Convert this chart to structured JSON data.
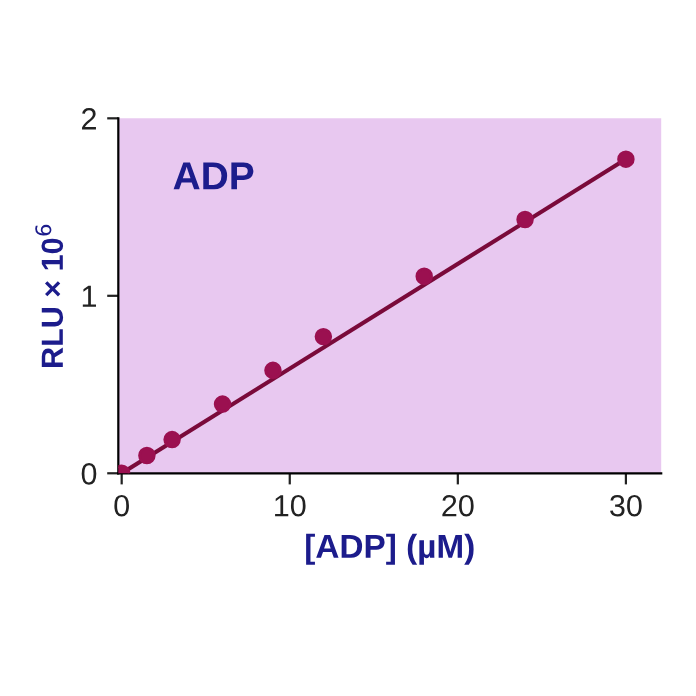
{
  "chart_data": {
    "type": "scatter",
    "xlabel": "[ADP] (µM)",
    "ylabel": "RLU × 10$^{6}$",
    "annotations": [
      "ADP"
    ],
    "x": [
      0,
      1.5,
      3,
      6,
      9,
      12,
      18,
      24,
      30
    ],
    "series": [
      {
        "color": "#9b1050",
        "marker": "circle",
        "values": [
          0,
          0.1,
          0.19,
          0.39,
          0.58,
          0.77,
          1.11,
          1.43,
          1.77
        ]
      },
      {
        "type": "line",
        "marker": "none",
        "color": "#7a0a3a",
        "x": [
          0,
          30
        ],
        "values": [
          0,
          1.77
        ]
      }
    ],
    "xlim": [
      -0.2,
      32.1
    ],
    "ylim": [
      0,
      2
    ],
    "xticks": [
      0,
      10,
      20,
      30
    ],
    "yticks": [
      0,
      1,
      2
    ],
    "grid": false,
    "legend": false
  }
}
